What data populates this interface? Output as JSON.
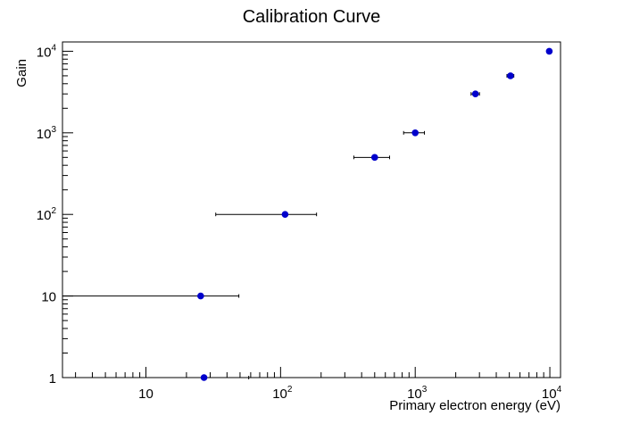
{
  "chart_data": {
    "type": "scatter",
    "title": "Calibration Curve",
    "xlabel": "Primary electron energy (eV)",
    "ylabel": "Gain",
    "xscale": "log",
    "yscale": "log",
    "xlim": [
      2.4,
      12000
    ],
    "ylim": [
      1,
      13000
    ],
    "grid": false,
    "x_tick_labels": [
      {
        "base": "10",
        "exp": ""
      },
      {
        "base": "10",
        "exp": "2"
      },
      {
        "base": "10",
        "exp": "3"
      },
      {
        "base": "10",
        "exp": "4"
      }
    ],
    "y_tick_labels": [
      {
        "base": "1",
        "exp": ""
      },
      {
        "base": "10",
        "exp": ""
      },
      {
        "base": "10",
        "exp": "2"
      },
      {
        "base": "10",
        "exp": "3"
      },
      {
        "base": "10",
        "exp": "4"
      }
    ],
    "colors": {
      "marker": "#0000cc",
      "axis": "#000000",
      "error_bar": "#000000"
    },
    "points": [
      {
        "x": 27,
        "y": 1,
        "xerr_low": 24.6,
        "xerr_high": 31
      },
      {
        "x": 25.5,
        "y": 10,
        "xerr_low": 23.1,
        "xerr_high": 23.5
      },
      {
        "x": 108,
        "y": 100,
        "xerr_low": 75,
        "xerr_high": 77
      },
      {
        "x": 500,
        "y": 500,
        "xerr_low": 150,
        "xerr_high": 145
      },
      {
        "x": 1000,
        "y": 1000,
        "xerr_low": 180,
        "xerr_high": 170
      },
      {
        "x": 2800,
        "y": 3000,
        "xerr_low": 200,
        "xerr_high": 200
      },
      {
        "x": 5100,
        "y": 5000,
        "xerr_low": 300,
        "xerr_high": 300
      },
      {
        "x": 9900,
        "y": 10000,
        "xerr_low": 180,
        "xerr_high": 180
      }
    ]
  }
}
